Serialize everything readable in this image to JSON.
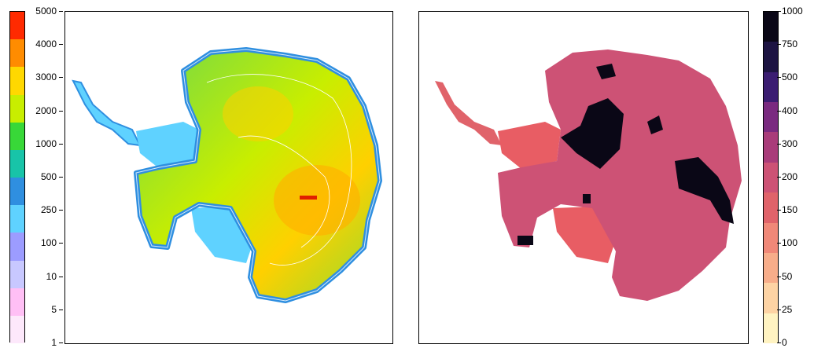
{
  "left_map": {
    "colorbar": {
      "ticks": [
        "5000",
        "4000",
        "3000",
        "2000",
        "1000",
        "500",
        "250",
        "100",
        "10",
        "5",
        "1"
      ],
      "colors": [
        "#ff2a00",
        "#ff8c00",
        "#ffd800",
        "#c8ee00",
        "#38d838",
        "#18c4a8",
        "#2f8fe0",
        "#5fd2ff",
        "#9c9cff",
        "#c8c8ff",
        "#ffbff5",
        "#fde8fb"
      ]
    }
  },
  "right_map": {
    "colorbar": {
      "ticks": [
        "1000",
        "750",
        "500",
        "400",
        "300",
        "200",
        "150",
        "100",
        "50",
        "25",
        "0"
      ],
      "colors": [
        "#0a0716",
        "#1d1442",
        "#3b1d72",
        "#7a2a80",
        "#a93c7a",
        "#cd5275",
        "#e0636a",
        "#f08878",
        "#f7ad8a",
        "#fdd3a4",
        "#fff3c2"
      ]
    }
  }
}
